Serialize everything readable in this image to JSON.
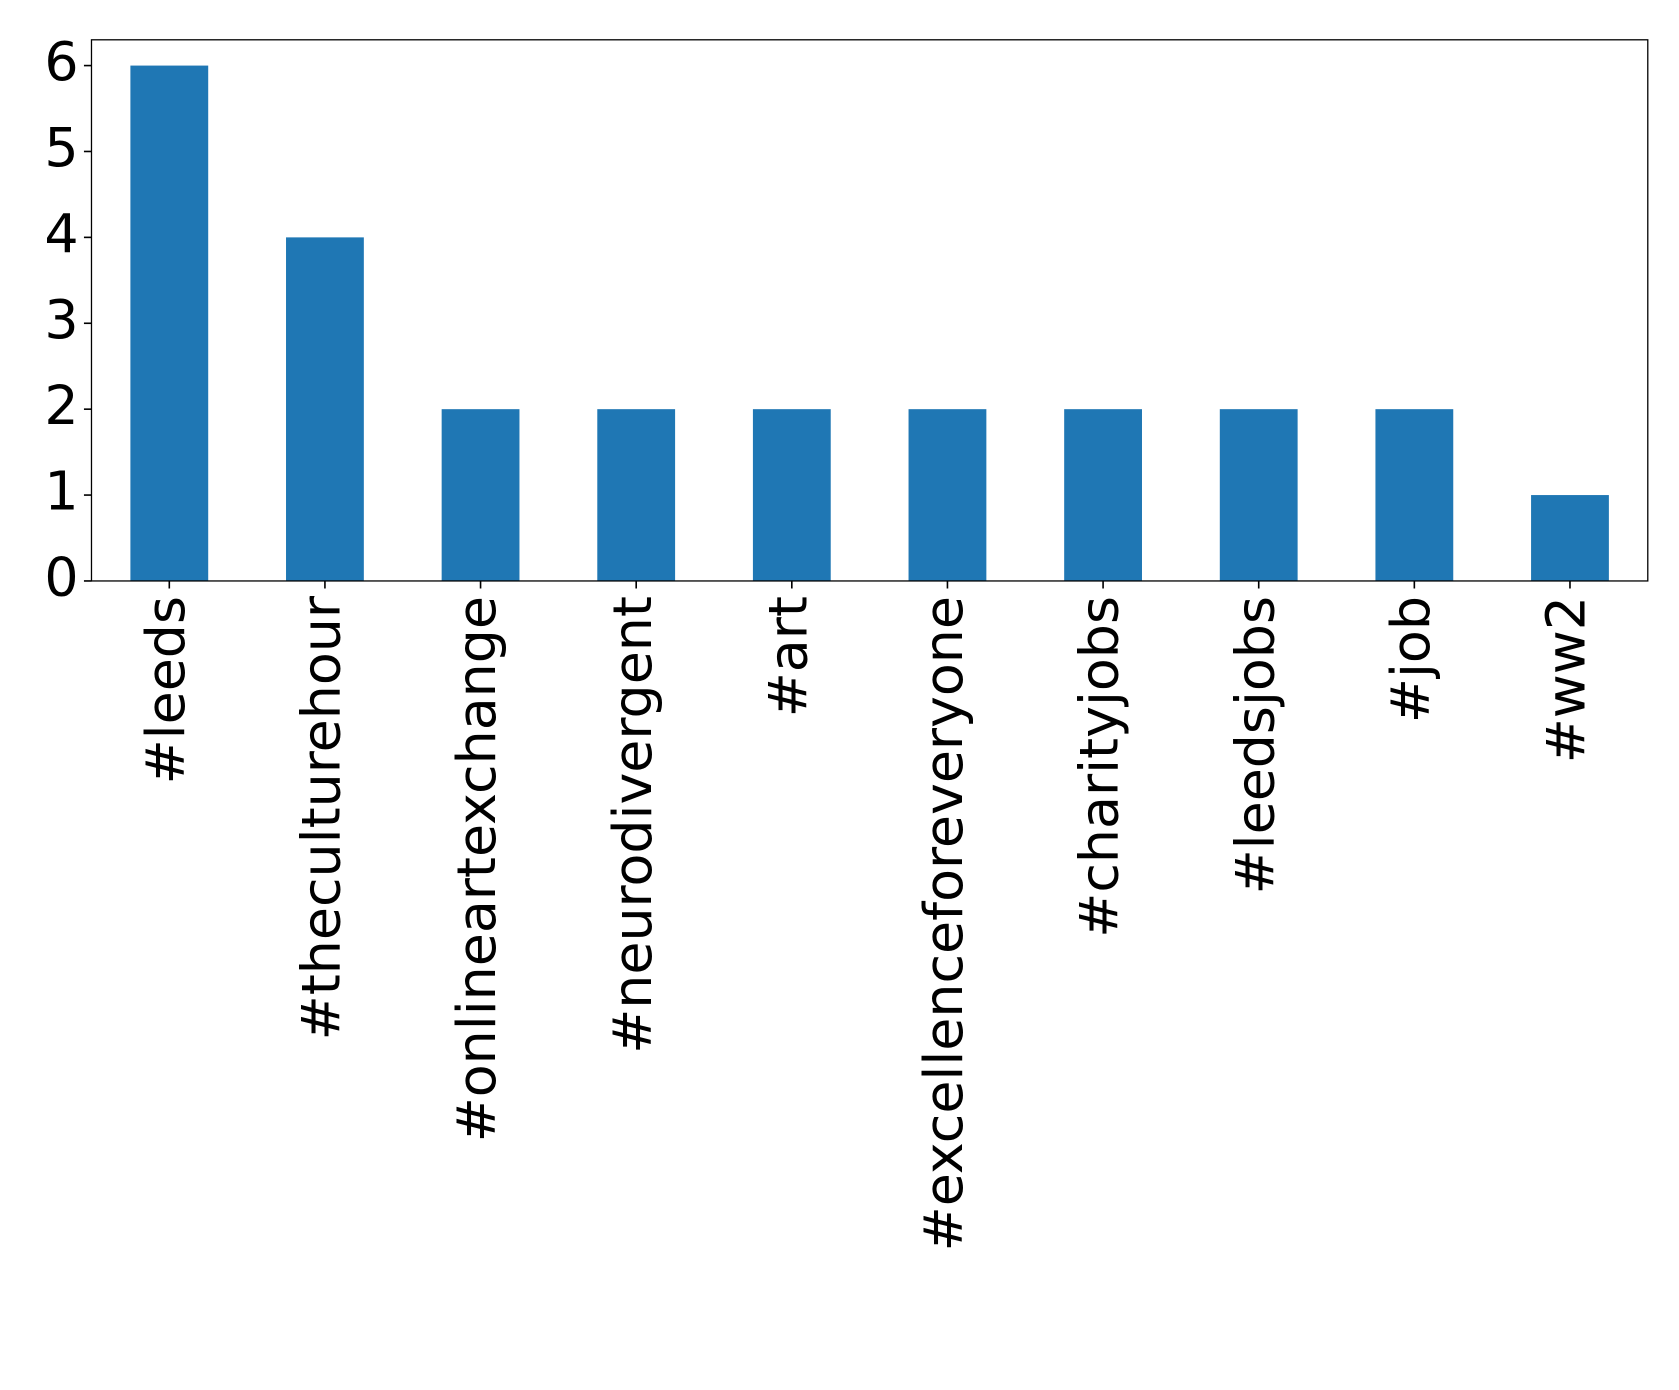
{
  "chart_data": {
    "type": "bar",
    "categories": [
      "#leeds",
      "#theculturehour",
      "#onlineartexchange",
      "#neurodivergent",
      "#art",
      "#excellenceforeveryone",
      "#charityjobs",
      "#leedsjobs",
      "#job",
      "#ww2"
    ],
    "values": [
      6,
      4,
      2,
      2,
      2,
      2,
      2,
      2,
      2,
      1
    ],
    "color": "#1f77b4",
    "ylim": [
      0,
      6.3
    ],
    "yticks": [
      0,
      1,
      2,
      3,
      4,
      5,
      6
    ],
    "grid": false
  }
}
